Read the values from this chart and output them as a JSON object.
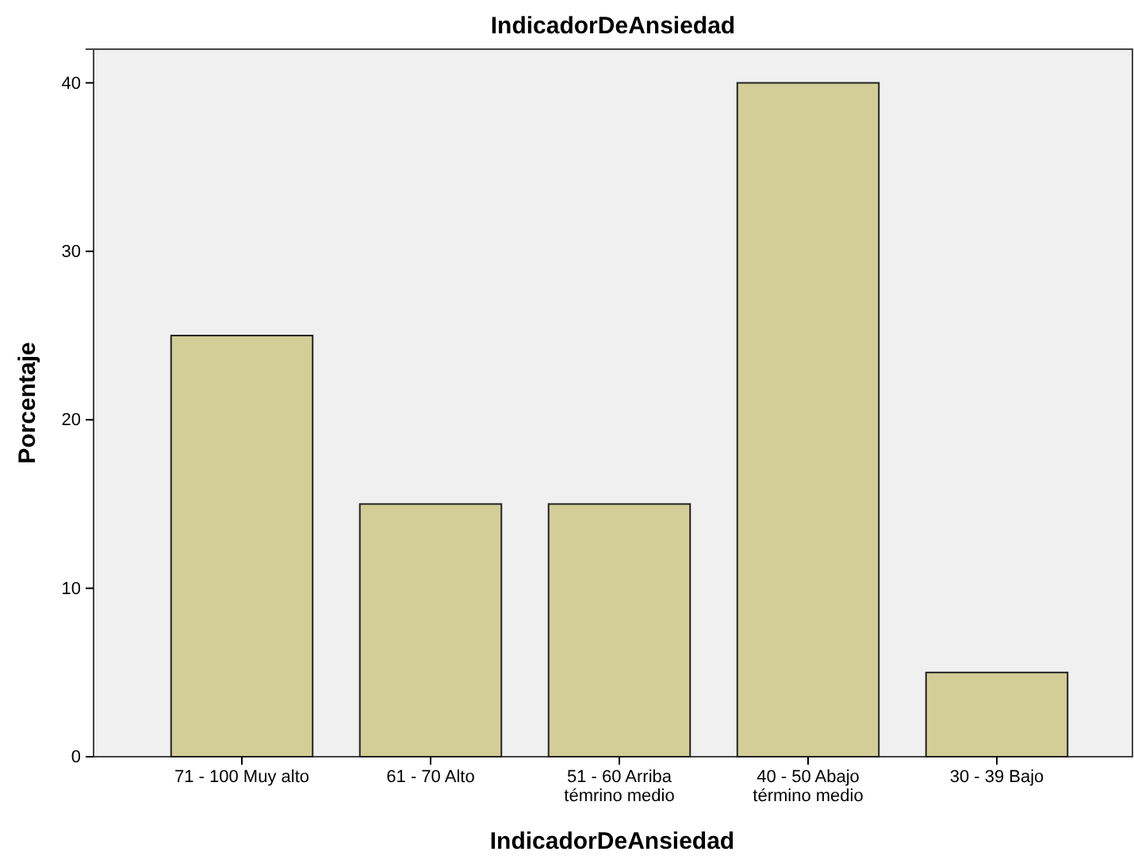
{
  "chart_data": {
    "type": "bar",
    "title": "IndicadorDeAnsiedad",
    "xlabel": "IndicadorDeAnsiedad",
    "ylabel": "Porcentaje",
    "categories": [
      "71 - 100 Muy alto",
      "61 - 70 Alto",
      "51 - 60 Arriba témrino medio",
      "40 - 50 Abajo término medio",
      "30 - 39 Bajo"
    ],
    "values": [
      25,
      15,
      15,
      40,
      5
    ],
    "color": "#d3ce97",
    "ylim": [
      0,
      42
    ],
    "yticks": [
      0,
      10,
      20,
      30,
      40
    ],
    "grid": false,
    "legend": false
  }
}
